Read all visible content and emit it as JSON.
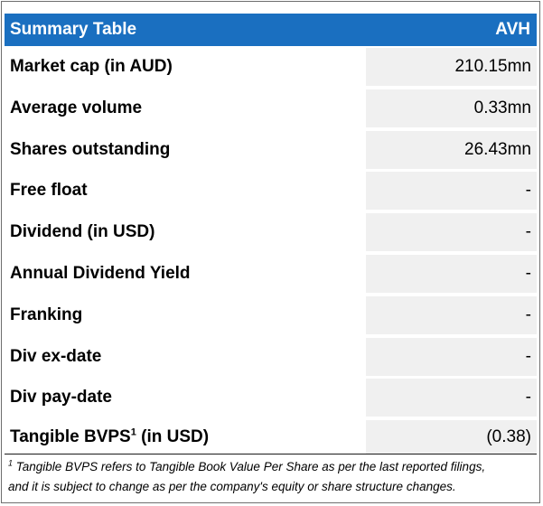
{
  "header": {
    "title": "Summary Table",
    "ticker": "AVH"
  },
  "rows": [
    {
      "label": "Market cap (in AUD)",
      "value": "210.15mn"
    },
    {
      "label": "Average volume",
      "value": "0.33mn"
    },
    {
      "label": "Shares outstanding",
      "value": "26.43mn"
    },
    {
      "label": "Free float",
      "value": "-"
    },
    {
      "label": "Dividend (in USD)",
      "value": "-"
    },
    {
      "label": "Annual Dividend Yield",
      "value": "-"
    },
    {
      "label": "Franking",
      "value": "-"
    },
    {
      "label": "Div ex-date",
      "value": "-"
    },
    {
      "label": "Div pay-date",
      "value": "-"
    }
  ],
  "last_row": {
    "label_main": "Tangible BVPS",
    "label_sup": "1",
    "label_suffix": " (in USD)",
    "value": "(0.38)"
  },
  "footnote": {
    "marker": "1",
    "line1": " Tangible BVPS refers to Tangible Book Value Per Share as per the last reported filings,",
    "line2": "and it is subject to change as per the company's equity or share structure changes."
  }
}
